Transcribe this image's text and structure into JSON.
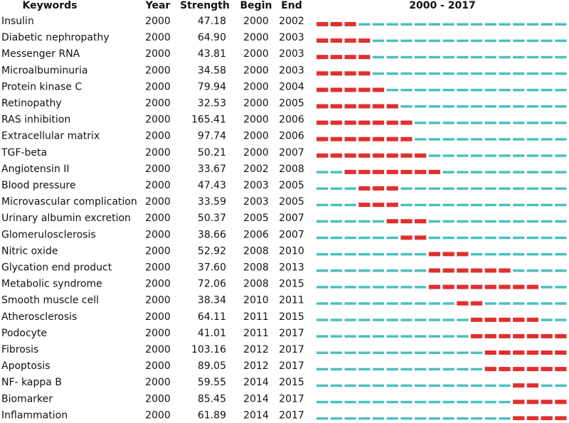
{
  "table": {
    "header": [
      "Keywords",
      "Year",
      "Strength",
      "Begin",
      "End"
    ],
    "timeline": {
      "label": "2000 - 2017",
      "start": 2000,
      "end": 2017
    },
    "rows": [
      [
        "Insulin",
        2000,
        "47.18",
        2000,
        2002
      ],
      [
        "Diabetic nephropathy",
        2000,
        "64.90",
        2000,
        2003
      ],
      [
        "Messenger RNA",
        2000,
        "43.81",
        2000,
        2003
      ],
      [
        "Microalbuminuria",
        2000,
        "34.58",
        2000,
        2003
      ],
      [
        "Protein kinase C",
        2000,
        "79.94",
        2000,
        2004
      ],
      [
        "Retinopathy",
        2000,
        "32.53",
        2000,
        2005
      ],
      [
        "RAS inhibition",
        2000,
        "165.41",
        2000,
        2006
      ],
      [
        "Extracellular matrix",
        2000,
        "97.74",
        2000,
        2006
      ],
      [
        "TGF-beta",
        2000,
        "50.21",
        2000,
        2007
      ],
      [
        "Angiotensin II",
        2000,
        "33.67",
        2002,
        2008
      ],
      [
        "Blood pressure",
        2000,
        "47.43",
        2003,
        2005
      ],
      [
        "Microvascular complication",
        2000,
        "33.59",
        2003,
        2005
      ],
      [
        "Urinary albumin excretion",
        2000,
        "50.37",
        2005,
        2007
      ],
      [
        "Glomerulosclerosis",
        2000,
        "38.66",
        2006,
        2007
      ],
      [
        "Nitric oxide",
        2000,
        "52.92",
        2008,
        2010
      ],
      [
        "Glycation end product",
        2000,
        "37.60",
        2008,
        2013
      ],
      [
        "Metabolic syndrome",
        2000,
        "72.06",
        2008,
        2015
      ],
      [
        "Smooth muscle cell",
        2000,
        "38.34",
        2010,
        2011
      ],
      [
        "Atherosclerosis",
        2000,
        "64.11",
        2011,
        2015
      ],
      [
        "Podocyte",
        2000,
        "41.01",
        2011,
        2017
      ],
      [
        "Fibrosis",
        2000,
        "103.16",
        2012,
        2017
      ],
      [
        "Apoptosis",
        2000,
        "89.05",
        2012,
        2017
      ],
      [
        "NF- kappa B",
        2000,
        "59.55",
        2014,
        2015
      ],
      [
        "Biomarker",
        2000,
        "85.45",
        2014,
        2017
      ],
      [
        "Inflammation",
        2000,
        "61.89",
        2014,
        2017
      ]
    ]
  }
}
